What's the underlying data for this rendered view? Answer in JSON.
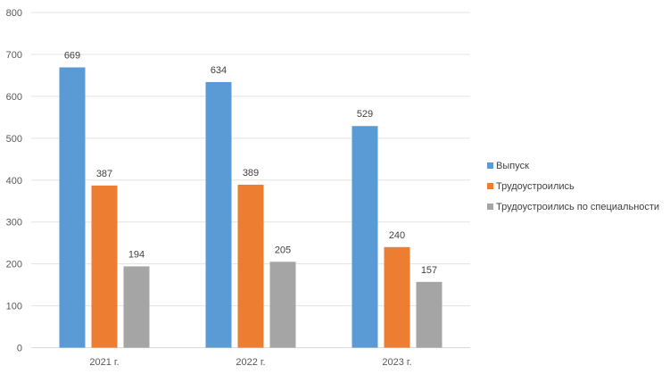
{
  "chart_data": {
    "type": "bar",
    "categories": [
      "2021 г.",
      "2022 г.",
      "2023 г."
    ],
    "series": [
      {
        "name": "Выпуск",
        "values": [
          669,
          634,
          529
        ],
        "color": "#5B9BD5"
      },
      {
        "name": "Трудоустроились",
        "values": [
          387,
          389,
          240
        ],
        "color": "#ED7D31"
      },
      {
        "name": "Трудоустроились по специальности",
        "values": [
          194,
          205,
          157
        ],
        "color": "#A5A5A5"
      }
    ],
    "title": "",
    "xlabel": "",
    "ylabel": "",
    "ylim": [
      0,
      800
    ],
    "yticks": [
      0,
      100,
      200,
      300,
      400,
      500,
      600,
      700,
      800
    ],
    "grid": true,
    "legend_position": "right",
    "data_labels": true
  }
}
